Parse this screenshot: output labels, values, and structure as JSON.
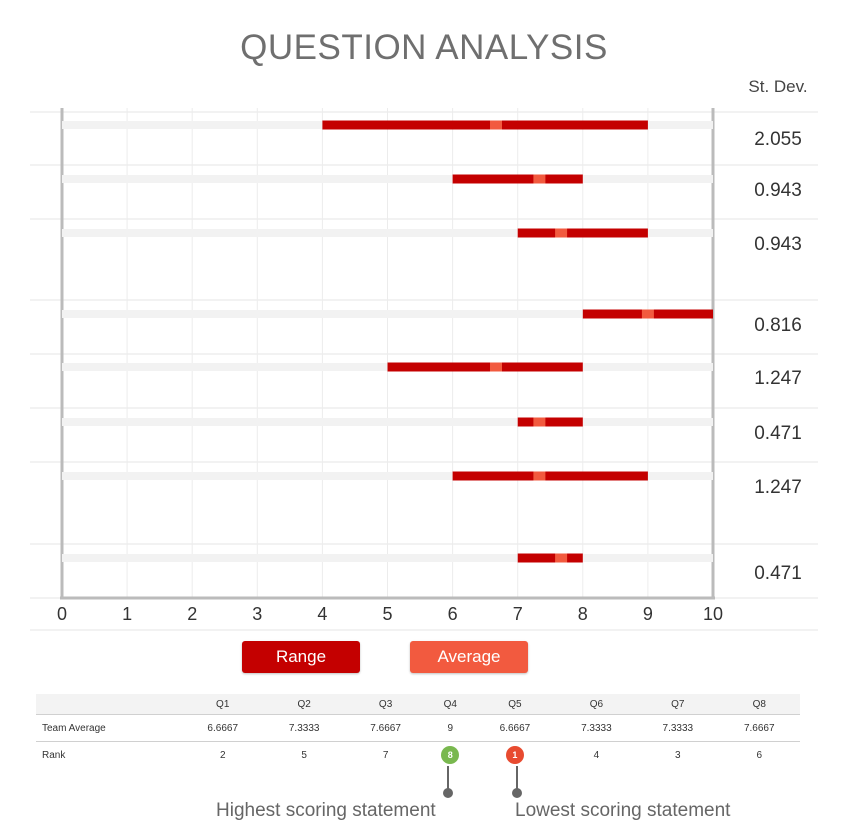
{
  "chart_data": {
    "type": "range",
    "title": "QUESTION ANALYSIS",
    "stdev_header": "St. Dev.",
    "xlim": [
      0,
      10
    ],
    "x_ticks": [
      "0",
      "1",
      "2",
      "3",
      "4",
      "5",
      "6",
      "7",
      "8",
      "9",
      "10"
    ],
    "rows": [
      {
        "min": 4,
        "max": 9,
        "avg": 6.6667,
        "stdev": "2.055"
      },
      {
        "min": 6,
        "max": 8,
        "avg": 7.3333,
        "stdev": "0.943"
      },
      {
        "min": 7,
        "max": 9,
        "avg": 7.6667,
        "stdev": "0.943"
      },
      {
        "min": 8,
        "max": 10,
        "avg": 9,
        "stdev": "0.816"
      },
      {
        "min": 5,
        "max": 8,
        "avg": 6.6667,
        "stdev": "1.247"
      },
      {
        "min": 7,
        "max": 8,
        "avg": 7.3333,
        "stdev": "0.471"
      },
      {
        "min": 6,
        "max": 9,
        "avg": 7.3333,
        "stdev": "1.247"
      },
      {
        "min": 7,
        "max": 8,
        "avg": 7.6667,
        "stdev": "0.471"
      }
    ],
    "colors": {
      "range": "#c40000",
      "average": "#f25a3f",
      "track": "#f2f2f2",
      "axis": "#bbbbbb"
    }
  },
  "legend": {
    "range": "Range",
    "average": "Average"
  },
  "table": {
    "columns": [
      "Q1",
      "Q2",
      "Q3",
      "Q4",
      "Q5",
      "Q6",
      "Q7",
      "Q8"
    ],
    "team_average_label": "Team Average",
    "team_average": [
      "6.6667",
      "7.3333",
      "7.6667",
      "9",
      "6.6667",
      "7.3333",
      "7.3333",
      "7.6667"
    ],
    "rank_label": "Rank",
    "rank": [
      "2",
      "5",
      "7",
      "8",
      "1",
      "4",
      "3",
      "6"
    ]
  },
  "annotations": {
    "highest": "Highest scoring statement",
    "lowest": "Lowest scoring statement"
  }
}
